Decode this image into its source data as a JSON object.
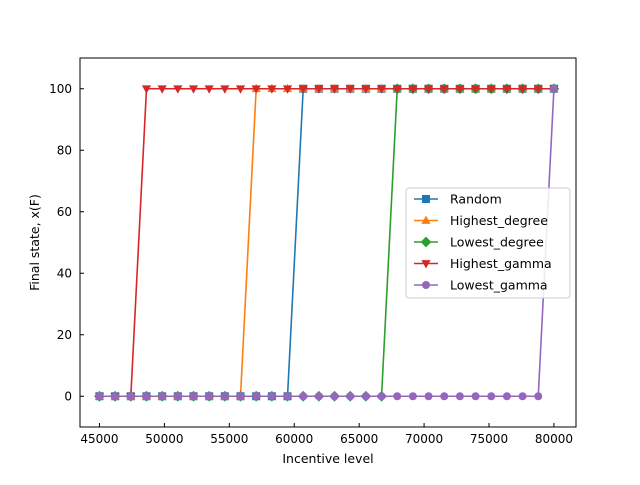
{
  "chart_data": {
    "type": "line",
    "title": "",
    "xlabel": "Incentive level",
    "ylabel": "Final state, x(F)",
    "xlim": [
      43500,
      81700
    ],
    "ylim": [
      -10,
      110
    ],
    "xticks": [
      45000,
      50000,
      55000,
      60000,
      65000,
      70000,
      75000,
      80000
    ],
    "yticks": [
      0,
      20,
      40,
      60,
      80,
      100
    ],
    "legend_position": "center-right",
    "grid": false,
    "x": [
      45000,
      46207,
      47414,
      48621,
      49828,
      51034,
      52241,
      53448,
      54655,
      55862,
      57069,
      58276,
      59483,
      60690,
      61897,
      63103,
      64310,
      65517,
      66724,
      67931,
      69138,
      70345,
      71552,
      72759,
      73966,
      75172,
      76379,
      77586,
      78793,
      80000
    ],
    "series": [
      {
        "name": "Random",
        "color": "#1f77b4",
        "marker": "square",
        "values": [
          0,
          0,
          0,
          0,
          0,
          0,
          0,
          0,
          0,
          0,
          0,
          0,
          0,
          100,
          100,
          100,
          100,
          100,
          100,
          100,
          100,
          100,
          100,
          100,
          100,
          100,
          100,
          100,
          100,
          100
        ]
      },
      {
        "name": "Highest_degree",
        "color": "#ff7f0e",
        "marker": "triangle-up",
        "values": [
          0,
          0,
          0,
          0,
          0,
          0,
          0,
          0,
          0,
          0,
          100,
          100,
          100,
          100,
          100,
          100,
          100,
          100,
          100,
          100,
          100,
          100,
          100,
          100,
          100,
          100,
          100,
          100,
          100,
          100
        ]
      },
      {
        "name": "Lowest_degree",
        "color": "#2ca02c",
        "marker": "diamond",
        "values": [
          0,
          0,
          0,
          0,
          0,
          0,
          0,
          0,
          0,
          0,
          0,
          0,
          0,
          0,
          0,
          0,
          0,
          0,
          0,
          100,
          100,
          100,
          100,
          100,
          100,
          100,
          100,
          100,
          100,
          100
        ]
      },
      {
        "name": "Highest_gamma",
        "color": "#d62728",
        "marker": "triangle-down",
        "values": [
          0,
          0,
          0,
          100,
          100,
          100,
          100,
          100,
          100,
          100,
          100,
          100,
          100,
          100,
          100,
          100,
          100,
          100,
          100,
          100,
          100,
          100,
          100,
          100,
          100,
          100,
          100,
          100,
          100,
          100
        ]
      },
      {
        "name": "Lowest_gamma",
        "color": "#9467bd",
        "marker": "circle",
        "values": [
          0,
          0,
          0,
          0,
          0,
          0,
          0,
          0,
          0,
          0,
          0,
          0,
          0,
          0,
          0,
          0,
          0,
          0,
          0,
          0,
          0,
          0,
          0,
          0,
          0,
          0,
          0,
          0,
          0,
          100
        ]
      }
    ]
  }
}
